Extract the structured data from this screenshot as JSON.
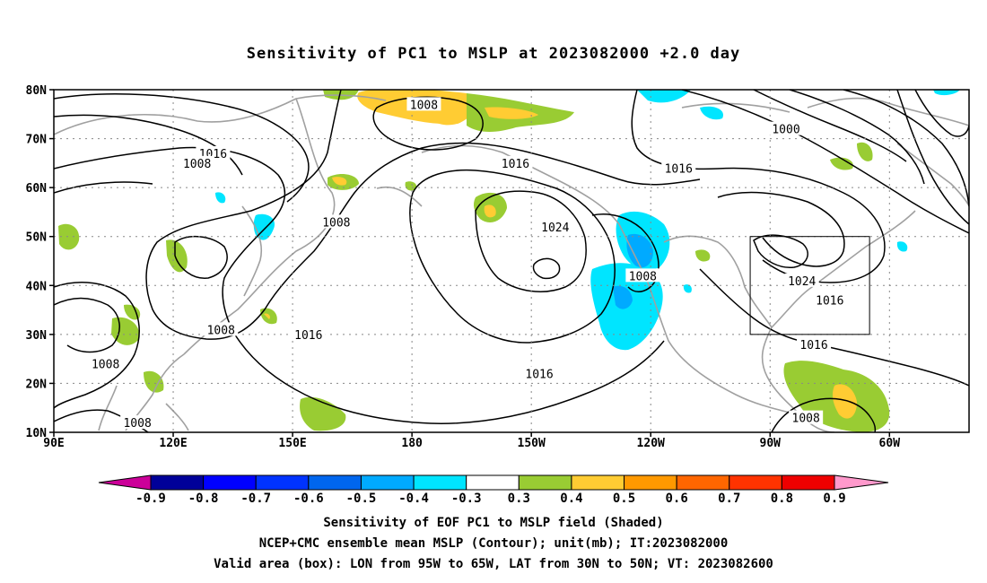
{
  "title": "Sensitivity of PC1 to MSLP at 2023082000 +2.0 day",
  "axes": {
    "lat_labels": [
      "80N",
      "70N",
      "60N",
      "50N",
      "40N",
      "30N",
      "20N",
      "10N"
    ],
    "lat_values": [
      80,
      70,
      60,
      50,
      40,
      30,
      20,
      10
    ],
    "lon_labels": [
      "90E",
      "120E",
      "150E",
      "180",
      "150W",
      "120W",
      "90W",
      "60W"
    ],
    "lon_values": [
      90,
      120,
      150,
      180,
      210,
      240,
      270,
      300
    ],
    "lon_range": [
      90,
      320
    ],
    "lat_range": [
      10,
      80
    ]
  },
  "contour_labels": [
    {
      "text": "1008",
      "lon": 183,
      "lat": 77
    },
    {
      "text": "1016",
      "lon": 130,
      "lat": 67
    },
    {
      "text": "1008",
      "lon": 126,
      "lat": 65
    },
    {
      "text": "1016",
      "lon": 206,
      "lat": 65
    },
    {
      "text": "1016",
      "lon": 247,
      "lat": 64
    },
    {
      "text": "1000",
      "lon": 274,
      "lat": 72
    },
    {
      "text": "1008",
      "lon": 161,
      "lat": 53
    },
    {
      "text": "1024",
      "lon": 216,
      "lat": 52
    },
    {
      "text": "1008",
      "lon": 238,
      "lat": 42
    },
    {
      "text": "1024",
      "lon": 278,
      "lat": 41
    },
    {
      "text": "1016",
      "lon": 285,
      "lat": 37
    },
    {
      "text": "1008",
      "lon": 132,
      "lat": 31
    },
    {
      "text": "1016",
      "lon": 154,
      "lat": 30
    },
    {
      "text": "1016",
      "lon": 281,
      "lat": 28
    },
    {
      "text": "1008",
      "lon": 103,
      "lat": 24
    },
    {
      "text": "1016",
      "lon": 212,
      "lat": 22
    },
    {
      "text": "1008",
      "lon": 111,
      "lat": 12
    },
    {
      "text": "1008",
      "lon": 279,
      "lat": 13
    }
  ],
  "valid_box": {
    "lon_min": 265,
    "lon_max": 295,
    "lat_min": 30,
    "lat_max": 50
  },
  "colorbar": {
    "labels": [
      "-0.9",
      "-0.8",
      "-0.7",
      "-0.6",
      "-0.5",
      "-0.4",
      "-0.3",
      "0.3",
      "0.4",
      "0.5",
      "0.6",
      "0.7",
      "0.8",
      "0.9"
    ],
    "colors": [
      "#000099",
      "#0000ff",
      "#0033ff",
      "#0066ee",
      "#00aaff",
      "#00e5ff",
      "#ffffff",
      "#99cc33",
      "#ffcc33",
      "#ff9900",
      "#ff6600",
      "#ff3300",
      "#ee0000"
    ],
    "low_end_color": "#cc0099",
    "high_end_color": "#ff99cc"
  },
  "captions": [
    "Sensitivity of EOF PC1 to MSLP field (Shaded)",
    "NCEP+CMC ensemble mean MSLP (Contour); unit(mb); IT:2023082000",
    "Valid area (box): LON from 95W to 65W, LAT from 30N to 50N; VT: 2023082600"
  ]
}
